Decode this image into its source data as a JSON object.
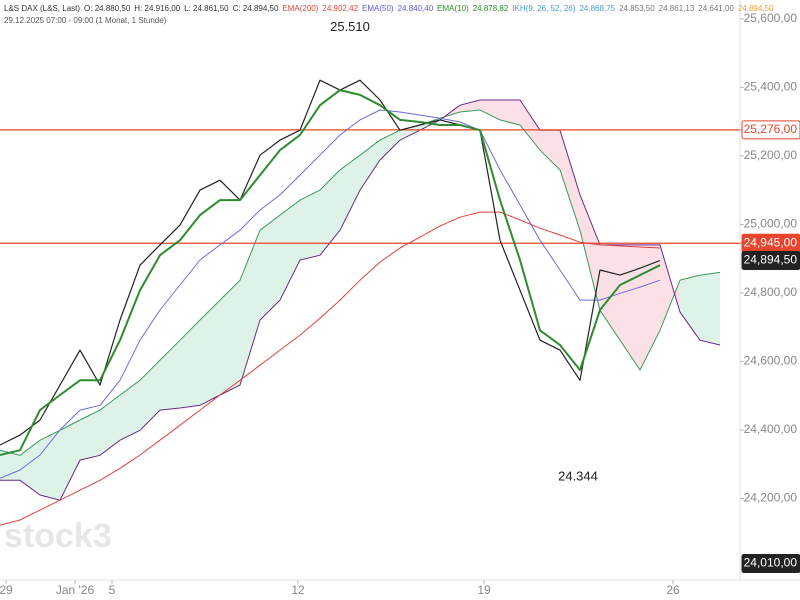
{
  "chart_data": {
    "type": "line",
    "header_items": [
      {
        "text": "L&S DAX (L&S, Last)",
        "color": "#333333"
      },
      {
        "text": "O: 24.880,50",
        "color": "#333333"
      },
      {
        "text": "H: 24.916,00",
        "color": "#333333"
      },
      {
        "text": "L: 24.861,50",
        "color": "#333333"
      },
      {
        "text": "C: 24.894,50",
        "color": "#333333"
      },
      {
        "text": "EMA(200)",
        "color": "#e0443a"
      },
      {
        "text": "24.902,42",
        "color": "#e0443a"
      },
      {
        "text": "EMA(50)",
        "color": "#5b5bd6"
      },
      {
        "text": "24.840,40",
        "color": "#5b5bd6"
      },
      {
        "text": "EMA(10)",
        "color": "#2e8b2e"
      },
      {
        "text": "24.878,82",
        "color": "#2e8b2e"
      },
      {
        "text": "IKH(9, 26, 52, 26)",
        "color": "#4a9bd6"
      },
      {
        "text": "24.868,75",
        "color": "#4a9bd6"
      },
      {
        "text": "24.853,50",
        "color": "#777777"
      },
      {
        "text": "24.861,13",
        "color": "#777777"
      },
      {
        "text": "24.641,00",
        "color": "#777777"
      },
      {
        "text": "24.894,50",
        "color": "#f0a040"
      }
    ],
    "subtitle": "29.12.2025 07:00 - 09:00 (1 Monat, 1 Stunde)",
    "watermark": "stock3",
    "x": [
      0,
      1,
      2,
      3,
      4,
      5,
      6,
      7,
      8,
      9,
      10,
      11,
      12,
      13,
      14,
      15,
      16,
      17,
      18,
      19,
      20,
      21,
      22,
      23,
      24,
      25,
      26,
      27,
      28,
      29,
      30,
      31,
      32,
      33,
      34,
      35,
      36
    ],
    "xlim": [
      0,
      37
    ],
    "xticks": [
      {
        "value": 0.3,
        "label": "29"
      },
      {
        "value": 3.75,
        "label": "Jan '26"
      },
      {
        "value": 5.6,
        "label": "5"
      },
      {
        "value": 14.9,
        "label": "12"
      },
      {
        "value": 24.2,
        "label": "19"
      },
      {
        "value": 33.65,
        "label": "26"
      }
    ],
    "ylim": [
      23962,
      25655
    ],
    "yticks": [
      {
        "value": 24200,
        "label": "24,200,00"
      },
      {
        "value": 24400,
        "label": "24,400,00"
      },
      {
        "value": 24600,
        "label": "24,600,00"
      },
      {
        "value": 24800,
        "label": "24,800,00"
      },
      {
        "value": 25000,
        "label": "25,000,00"
      },
      {
        "value": 25200,
        "label": "25,200,00"
      },
      {
        "value": 25400,
        "label": "25,400,00"
      },
      {
        "value": 25600,
        "label": "25,600,00"
      }
    ],
    "grid": false,
    "cloud": {
      "color_up": "#dff2e8",
      "color_down": "#fbe1e6",
      "line_a": "#3a9a5a",
      "line_b": "#6a2a8a",
      "span_a": [
        24341,
        24326,
        24370,
        24399,
        24429,
        24458,
        24502,
        24545,
        24604,
        24662,
        24721,
        24779,
        24837,
        24983,
        25027,
        25071,
        25100,
        25159,
        25202,
        25246,
        25275,
        25290,
        25310,
        25328,
        25334,
        25305,
        25290,
        25217,
        25159,
        24983,
        24749,
        24662,
        24575,
        24691,
        24837,
        24852,
        24860
      ],
      "span_b": [
        24253,
        24253,
        24210,
        24195,
        24312,
        24326,
        24370,
        24399,
        24458,
        24464,
        24472,
        24502,
        24531,
        24721,
        24779,
        24896,
        24910,
        24983,
        25100,
        25188,
        25246,
        25275,
        25305,
        25348,
        25363,
        25363,
        25363,
        25275,
        25275,
        25086,
        24940,
        24940,
        24940,
        24940,
        24744,
        24662,
        24648
      ]
    },
    "series": [
      {
        "name": "EMA(200)",
        "color": "#e0443a",
        "width": 1,
        "values": [
          24122,
          24137,
          24166,
          24195,
          24224,
          24253,
          24288,
          24327,
          24370,
          24414,
          24458,
          24502,
          24545,
          24589,
          24633,
          24677,
          24726,
          24779,
          24837,
          24890,
          24931,
          24963,
          24995,
          25021,
          25036,
          25036,
          25013,
          24989,
          24969,
          24948,
          24940,
          24937,
          24934,
          24931,
          null,
          null,
          null
        ]
      },
      {
        "name": "EMA(50)",
        "color": "#6a6ae0",
        "width": 1,
        "values": [
          24259,
          24283,
          24327,
          24400,
          24458,
          24472,
          24545,
          24662,
          24750,
          24823,
          24896,
          24940,
          24983,
          25042,
          25086,
          25144,
          25202,
          25261,
          25305,
          25334,
          25328,
          25319,
          25310,
          25299,
          25275,
          25159,
          25057,
          24954,
          24867,
          24779,
          24779,
          24799,
          24817,
          24837,
          null,
          null,
          null
        ]
      },
      {
        "name": "L&S DAX (L&S, Last)",
        "color": "#222222",
        "width": 1.2,
        "values": [
          24356,
          24385,
          24429,
          24531,
          24633,
          24531,
          24721,
          24881,
          24940,
          24998,
          25100,
          25129,
          25071,
          25202,
          25246,
          25275,
          25421,
          25392,
          25421,
          25363,
          25275,
          25290,
          25305,
          25290,
          25275,
          24954,
          24808,
          24662,
          24633,
          24545,
          24867,
          24852,
          24872,
          24894.5,
          null,
          null,
          null
        ]
      },
      {
        "name": "EMA(10)",
        "color": "#2e8b2e",
        "width": 2,
        "values": [
          24327,
          24341,
          24458,
          24502,
          24545,
          24545,
          24662,
          24808,
          24910,
          24954,
          25027,
          25071,
          25071,
          25144,
          25217,
          25261,
          25348,
          25392,
          25378,
          25348,
          25305,
          25299,
          25290,
          25290,
          25275,
          25071,
          24896,
          24691,
          24648,
          24575,
          24750,
          24823,
          24852,
          24881,
          null,
          null,
          null
        ]
      }
    ],
    "hlines": [
      {
        "value": 25276,
        "label": "25,276,00",
        "color": "#e8452c"
      },
      {
        "value": 24945,
        "label": "24,945,00",
        "color": "#e8452c"
      }
    ],
    "price_labels": [
      {
        "value": 24894.5,
        "label": "24,894,50",
        "color": "#222222"
      },
      {
        "value": 24010,
        "label": "24,010,00",
        "color": "#222222"
      }
    ],
    "annotations": [
      {
        "x": 17.5,
        "value": 25510,
        "label": "25.510",
        "position": "above"
      },
      {
        "x": 28.9,
        "value": 24344,
        "label": "24.344",
        "position": "below"
      }
    ]
  }
}
